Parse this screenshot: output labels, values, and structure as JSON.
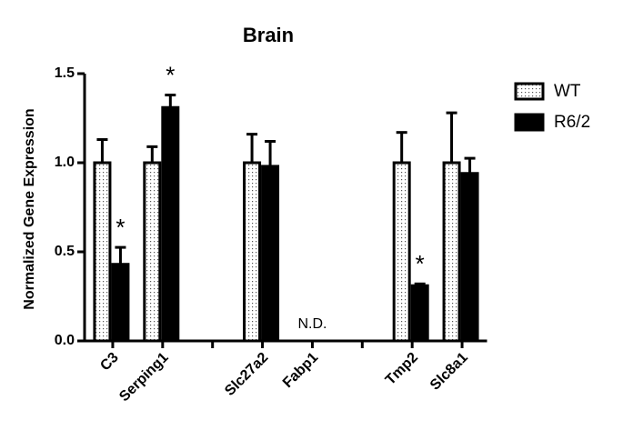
{
  "chart_data": {
    "type": "bar",
    "title": "Brain",
    "y_label": "Normalized Gene Expression",
    "categories": [
      "C3",
      "Serping1",
      null,
      "Slc27a2",
      "Fabp1",
      null,
      "Tmp2",
      "Slc8a1"
    ],
    "series": [
      {
        "name": "WT",
        "color": "#ffffff",
        "pattern": "dots",
        "values": [
          1,
          1,
          null,
          1,
          null,
          null,
          1,
          1
        ],
        "errors": [
          0.13,
          0.09,
          null,
          0.16,
          null,
          null,
          0.17,
          0.28
        ]
      },
      {
        "name": "R6/2",
        "color": "#000000",
        "values": [
          0.43,
          1.31,
          null,
          0.98,
          null,
          null,
          0.31,
          0.94
        ],
        "errors": [
          0.095,
          0.07,
          null,
          0.14,
          null,
          null,
          0.01,
          0.085
        ]
      }
    ],
    "annotations": [
      {
        "text": "*",
        "category": "C3"
      },
      {
        "text": "*",
        "category": "Serping1"
      },
      {
        "text": "*",
        "category": "Tmp2"
      },
      {
        "text": "N.D.",
        "category": "Fabp1"
      }
    ],
    "ylim": [
      0,
      1.5
    ],
    "yticks": [
      {
        "value": 0,
        "label": "0.0"
      },
      {
        "value": 0.5,
        "label": "0.5"
      },
      {
        "value": 1,
        "label": "1.0"
      },
      {
        "value": 1.5,
        "label": "1.5"
      }
    ],
    "grid": false,
    "legend": "top-right"
  }
}
